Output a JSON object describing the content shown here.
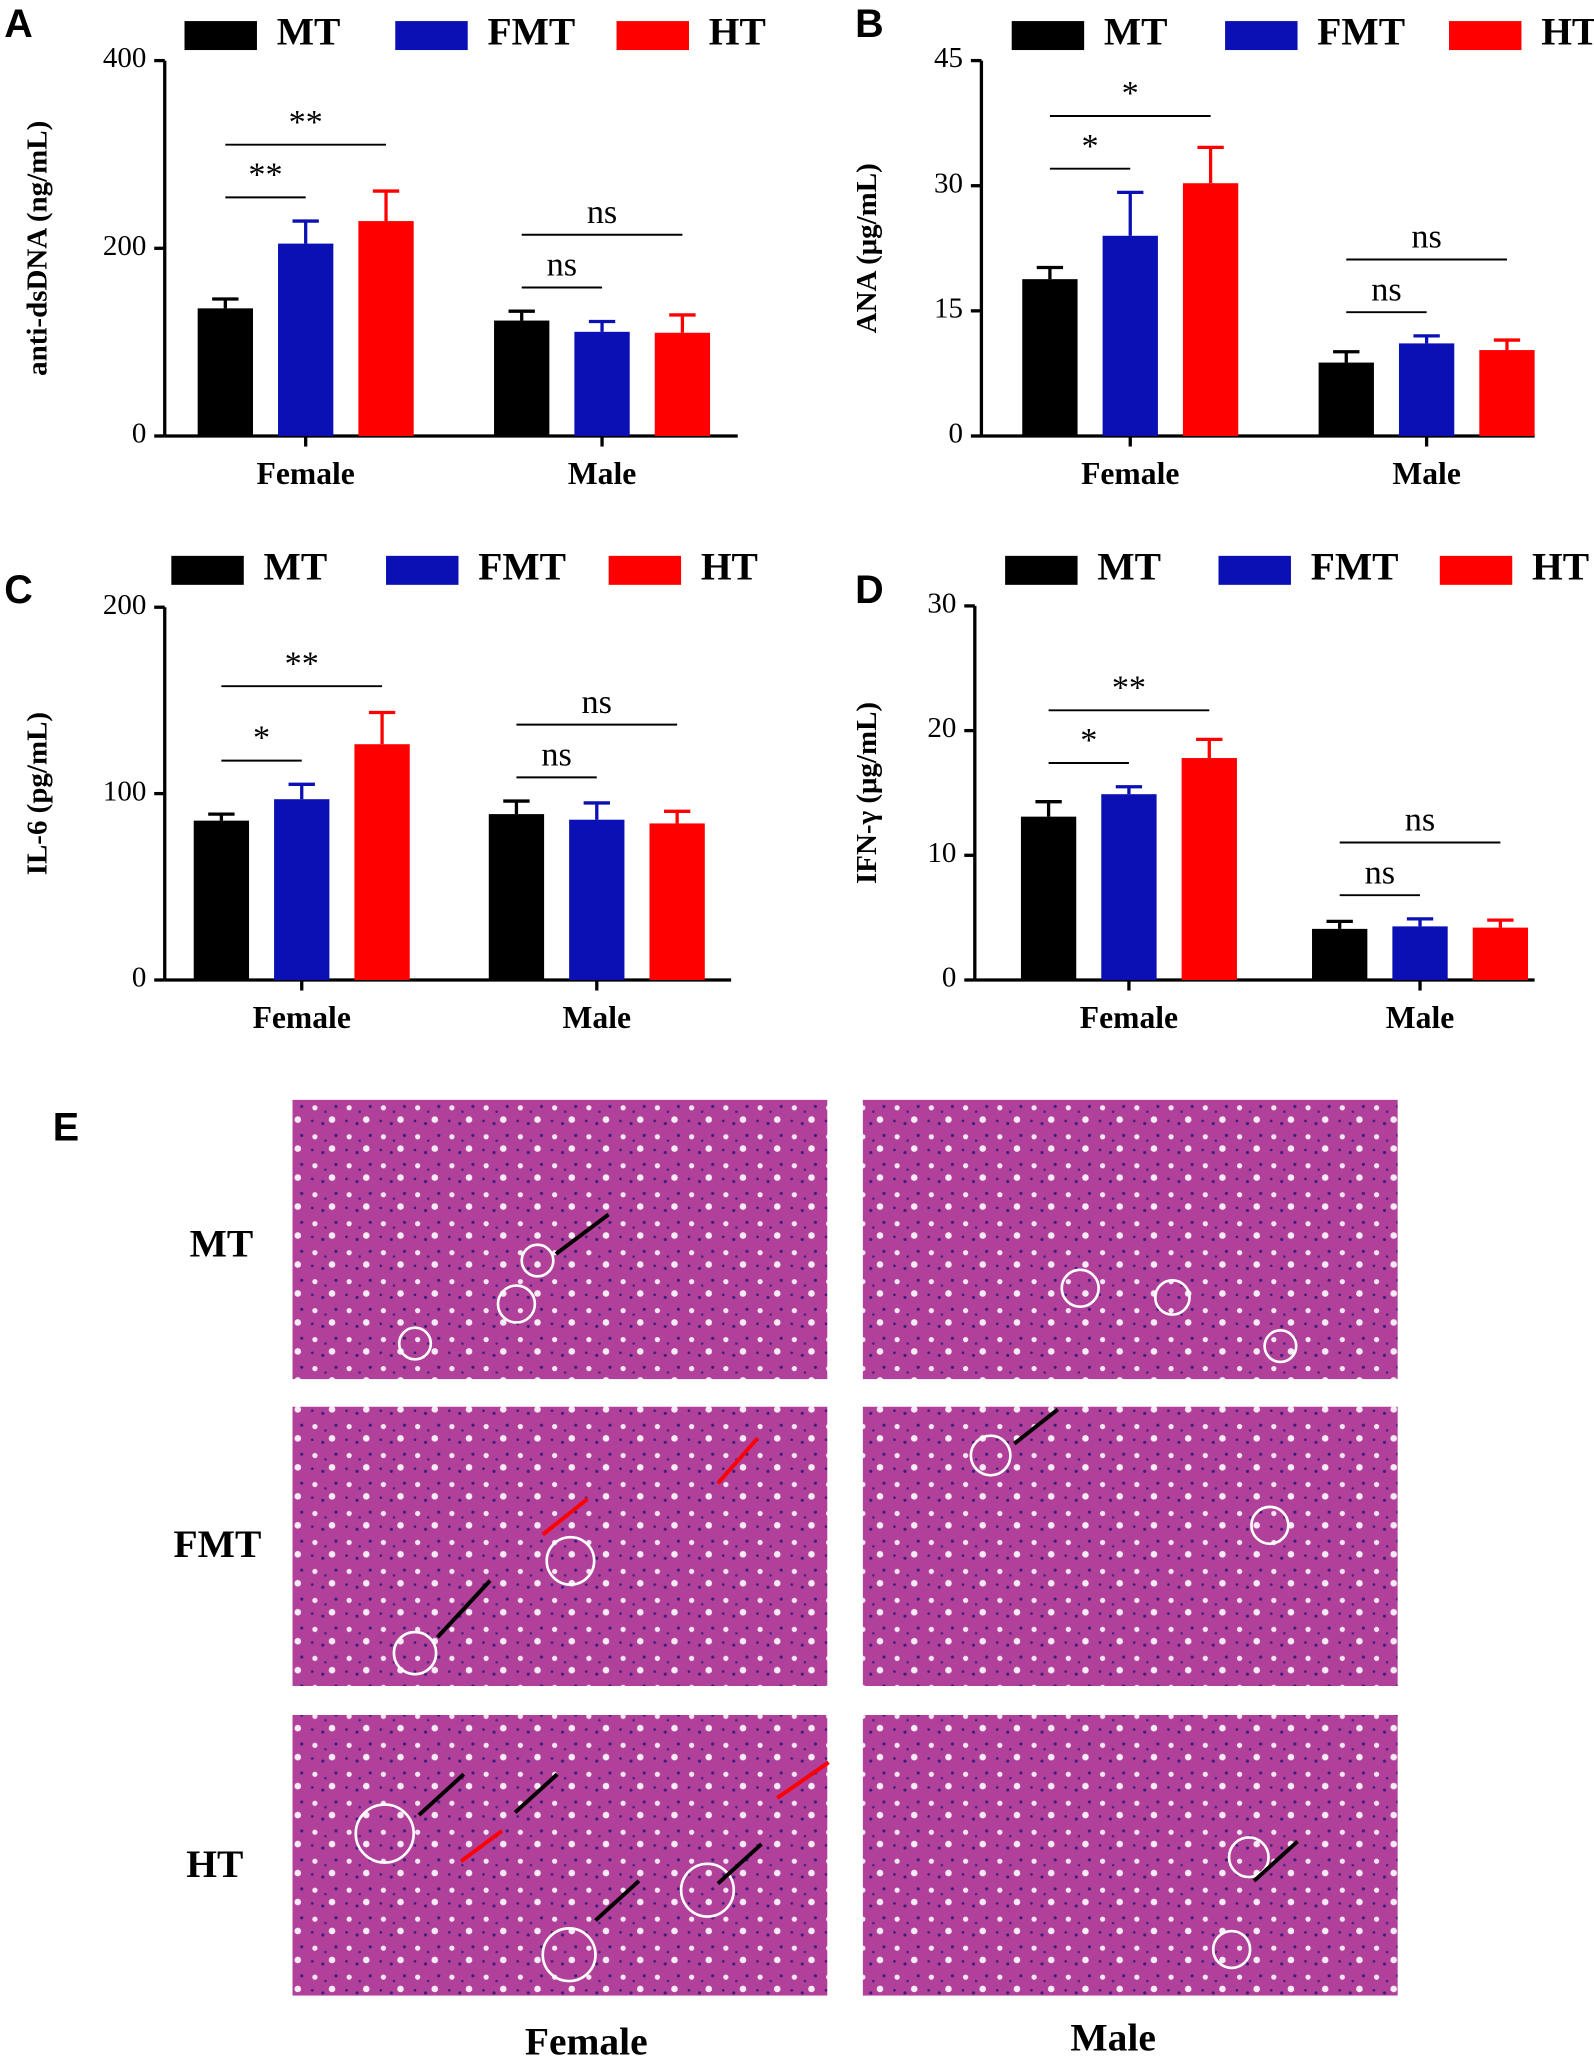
{
  "chart_data": [
    {
      "type": "bar",
      "panel": "A",
      "ylabel": "anti-dsDNA (ng/mL)",
      "categories": [
        "Female",
        "Male"
      ],
      "series": [
        {
          "name": "MT",
          "color": "#000000",
          "values": [
            136,
            123
          ],
          "errors": [
            10,
            10
          ]
        },
        {
          "name": "FMT",
          "color": "#0a10b4",
          "values": [
            205,
            111
          ],
          "errors": [
            24,
            11
          ]
        },
        {
          "name": "HT",
          "color": "#ff0000",
          "values": [
            229,
            110
          ],
          "errors": [
            32,
            19
          ]
        }
      ],
      "ylim": [
        0,
        400
      ],
      "yticks": [
        0,
        200,
        400
      ],
      "annotations": [
        [
          "**",
          "**"
        ],
        [
          "ns",
          "ns"
        ]
      ]
    },
    {
      "type": "bar",
      "panel": "B",
      "ylabel": "ANA (μg/mL)",
      "categories": [
        "Female",
        "Male"
      ],
      "series": [
        {
          "name": "MT",
          "color": "#000000",
          "values": [
            18.8,
            8.8
          ],
          "errors": [
            1.4,
            1.3
          ]
        },
        {
          "name": "FMT",
          "color": "#0a10b4",
          "values": [
            24,
            11.1
          ],
          "errors": [
            5.2,
            0.9
          ]
        },
        {
          "name": "HT",
          "color": "#ff0000",
          "values": [
            30.3,
            10.3
          ],
          "errors": [
            4.3,
            1.2
          ]
        }
      ],
      "ylim": [
        0,
        45
      ],
      "yticks": [
        0,
        15,
        30,
        45
      ],
      "annotations": [
        [
          "*",
          "*"
        ],
        [
          "ns",
          "ns"
        ]
      ]
    },
    {
      "type": "bar",
      "panel": "C",
      "ylabel": "IL-6 (pg/mL)",
      "categories": [
        "Female",
        "Male"
      ],
      "series": [
        {
          "name": "MT",
          "color": "#000000",
          "values": [
            85.5,
            89
          ],
          "errors": [
            3.5,
            7
          ]
        },
        {
          "name": "FMT",
          "color": "#0a10b4",
          "values": [
            97,
            86
          ],
          "errors": [
            8,
            9
          ]
        },
        {
          "name": "HT",
          "color": "#ff0000",
          "values": [
            126.5,
            84
          ],
          "errors": [
            17,
            6.5
          ]
        }
      ],
      "ylim": [
        0,
        200
      ],
      "yticks": [
        0,
        100,
        200
      ],
      "annotations": [
        [
          "*",
          "**"
        ],
        [
          "ns",
          "ns"
        ]
      ]
    },
    {
      "type": "bar",
      "panel": "D",
      "ylabel": "IFN-γ (μg/mL)",
      "categories": [
        "Female",
        "Male"
      ],
      "series": [
        {
          "name": "MT",
          "color": "#000000",
          "values": [
            13.1,
            4.1
          ],
          "errors": [
            1.2,
            0.6
          ]
        },
        {
          "name": "FMT",
          "color": "#0a10b4",
          "values": [
            14.9,
            4.3
          ],
          "errors": [
            0.6,
            0.6
          ]
        },
        {
          "name": "HT",
          "color": "#ff0000",
          "values": [
            17.8,
            4.2
          ],
          "errors": [
            1.5,
            0.6
          ]
        }
      ],
      "ylim": [
        0,
        30
      ],
      "yticks": [
        0,
        10,
        20,
        30
      ],
      "annotations": [
        [
          "*",
          "**"
        ],
        [
          "ns",
          "ns"
        ]
      ]
    }
  ],
  "histology": {
    "panel": "E",
    "rows": [
      "MT",
      "FMT",
      "HT"
    ],
    "columns": [
      "Female",
      "Male"
    ]
  }
}
